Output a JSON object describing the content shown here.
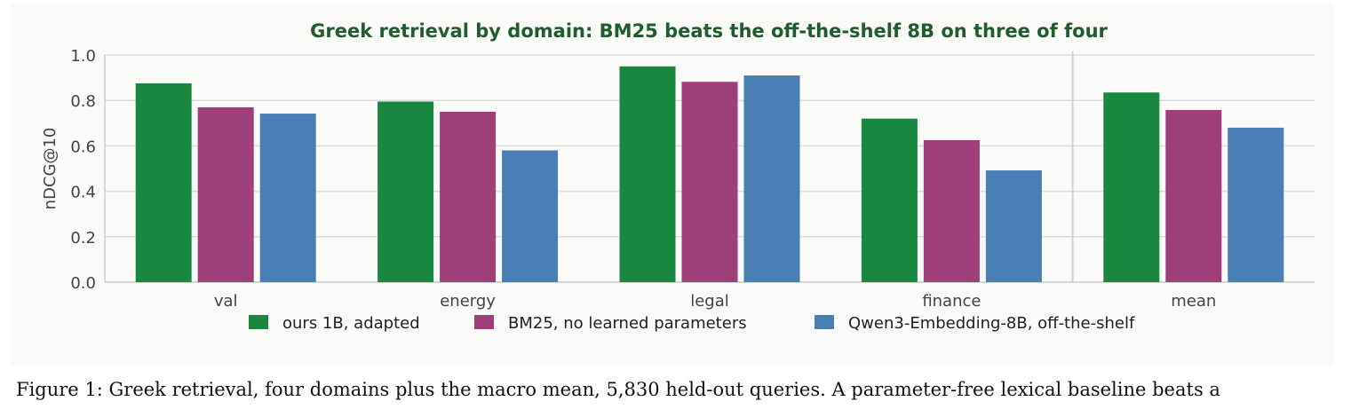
{
  "chart_data": {
    "type": "bar",
    "title": "Greek retrieval by domain: BM25 beats the off-the-shelf 8B on three of four",
    "title_color": "#1f5c2e",
    "xlabel": "",
    "ylabel": "nDCG@10",
    "ylim": [
      0,
      1.0
    ],
    "yticks": [
      "0.0",
      "0.2",
      "0.4",
      "0.6",
      "0.8",
      "1.0"
    ],
    "grid": true,
    "legend_position": "bottom",
    "categories": [
      "val",
      "energy",
      "legal",
      "finance",
      "mean"
    ],
    "separator_before": "mean",
    "series": [
      {
        "name": "ours 1B, adapted",
        "color": "#1a8740",
        "values": [
          0.875,
          0.795,
          0.95,
          0.72,
          0.835
        ]
      },
      {
        "name": "BM25, no learned parameters",
        "color": "#9e3f7a",
        "values": [
          0.77,
          0.75,
          0.882,
          0.625,
          0.758
        ]
      },
      {
        "name": "Qwen3-Embedding-8B, off-the-shelf",
        "color": "#4a7fb6",
        "values": [
          0.742,
          0.58,
          0.91,
          0.492,
          0.68
        ]
      }
    ]
  },
  "caption": {
    "line1": "Figure 1: Greek retrieval, four domains plus the macro mean, 5,830 held-out queries. A parameter-free lexical baseline beats a"
  }
}
